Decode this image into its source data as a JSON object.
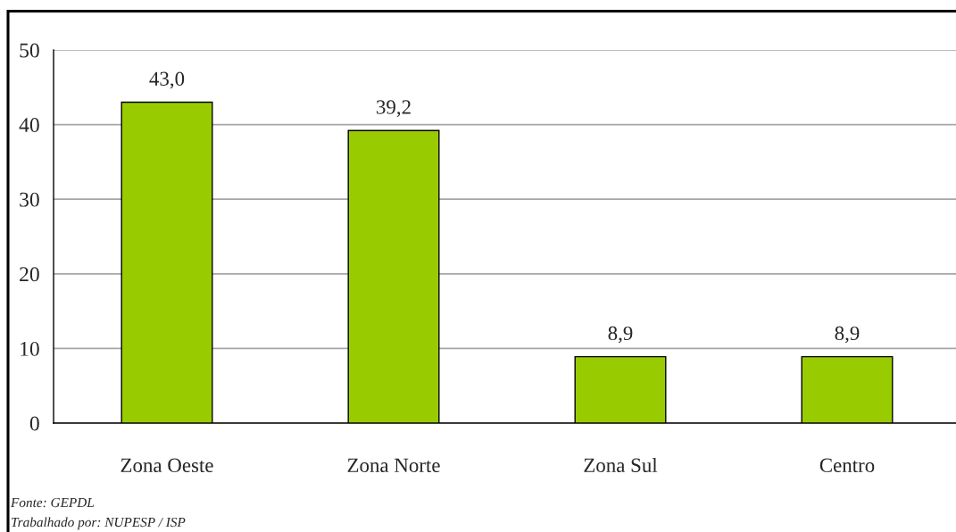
{
  "chart_data": {
    "type": "bar",
    "categories": [
      "Zona Oeste",
      "Zona Norte",
      "Zona Sul",
      "Centro"
    ],
    "values": [
      43.0,
      39.2,
      8.9,
      8.9
    ],
    "value_labels": [
      "43,0",
      "39,2",
      "8,9",
      "8,9"
    ],
    "color": "#99cc00",
    "ylim": [
      0,
      50
    ],
    "yticks": [
      0,
      10,
      20,
      30,
      40,
      50
    ],
    "grid": "y",
    "annotations": [
      "Fonte: GEPDL",
      "Trabalhado por: NUPESP / ISP"
    ]
  }
}
